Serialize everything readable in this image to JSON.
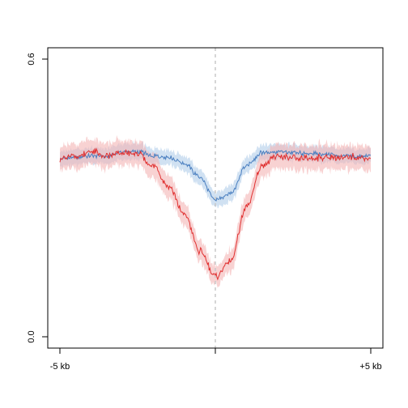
{
  "chart_data": {
    "type": "line",
    "title": "",
    "xlabel": "",
    "ylabel": "",
    "xlim": [
      -5,
      5
    ],
    "ylim": [
      0,
      0.6
    ],
    "x_ticks": [
      {
        "value": -5,
        "label": "-5 kb"
      },
      {
        "value": 0,
        "label": ""
      },
      {
        "value": 5,
        "label": "+5 kb"
      }
    ],
    "y_ticks": [
      {
        "value": 0.0,
        "label": "0.0"
      },
      {
        "value": 0.6,
        "label": "0.6"
      }
    ],
    "reference_line": {
      "x": 0,
      "style": "dashed",
      "color": "#c8c8c8"
    },
    "grid": false,
    "legend": "none",
    "series": [
      {
        "color": "#4a7fc0",
        "band_color": "#a9c8e8",
        "x": [
          -5,
          -4.5,
          -4,
          -3.5,
          -3,
          -2.5,
          -2,
          -1.5,
          -1,
          -0.5,
          0,
          0.5,
          1,
          1.5,
          2,
          2.5,
          3,
          3.5,
          4,
          4.5,
          5
        ],
        "values": [
          0.385,
          0.388,
          0.392,
          0.39,
          0.4,
          0.4,
          0.39,
          0.388,
          0.375,
          0.345,
          0.295,
          0.31,
          0.37,
          0.398,
          0.4,
          0.398,
          0.396,
          0.395,
          0.392,
          0.39,
          0.39
        ],
        "band": [
          0.013,
          0.013,
          0.013,
          0.013,
          0.013,
          0.013,
          0.013,
          0.013,
          0.013,
          0.014,
          0.013,
          0.014,
          0.014,
          0.013,
          0.013,
          0.013,
          0.013,
          0.013,
          0.013,
          0.013,
          0.013
        ]
      },
      {
        "color": "#e03030",
        "band_color": "#f4b4b4",
        "x": [
          -5,
          -4.5,
          -4,
          -3.5,
          -3,
          -2.5,
          -2,
          -1.5,
          -1,
          -0.5,
          0,
          0.5,
          1,
          1.5,
          2,
          2.5,
          3,
          3.5,
          4,
          4.5,
          5
        ],
        "values": [
          0.385,
          0.39,
          0.4,
          0.39,
          0.398,
          0.395,
          0.368,
          0.325,
          0.265,
          0.185,
          0.13,
          0.165,
          0.28,
          0.37,
          0.39,
          0.385,
          0.385,
          0.388,
          0.385,
          0.39,
          0.385
        ],
        "band": [
          0.022,
          0.022,
          0.022,
          0.022,
          0.022,
          0.022,
          0.022,
          0.02,
          0.02,
          0.018,
          0.015,
          0.018,
          0.02,
          0.022,
          0.022,
          0.022,
          0.022,
          0.022,
          0.022,
          0.022,
          0.022
        ]
      }
    ]
  }
}
